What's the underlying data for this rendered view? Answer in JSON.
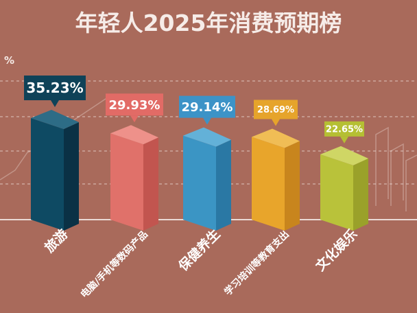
{
  "page": {
    "title": "年轻人2025年消费预期榜",
    "unit_mark": "%"
  },
  "chart_data": {
    "type": "bar",
    "title": "年轻人2025年消费预期榜",
    "categories": [
      "旅游",
      "电脑/手机等数码产品",
      "保健养生",
      "学习培训等教育支出",
      "文化娱乐"
    ],
    "values": [
      35.23,
      29.93,
      29.14,
      28.69,
      22.65
    ],
    "value_labels": [
      "35.23%",
      "29.93%",
      "29.14%",
      "28.69%",
      "22.65%"
    ],
    "ylim": [
      0,
      40
    ],
    "grid": true,
    "legend": "none",
    "colors": {
      "front": [
        "#0e4a63",
        "#e0716a",
        "#3b95c4",
        "#e8a52b",
        "#b9c23a"
      ],
      "side": [
        "#0a3145",
        "#c2554f",
        "#2a78a4",
        "#c8851d",
        "#9aa12a"
      ],
      "top": [
        "#2d6c86",
        "#ee918a",
        "#63b1d8",
        "#f0bd55",
        "#cfd665"
      ],
      "label": [
        "#0f4258",
        "#e26b66",
        "#3c93c7",
        "#e6a42b",
        "#b5bf33"
      ],
      "background": "#a96a5b"
    }
  }
}
